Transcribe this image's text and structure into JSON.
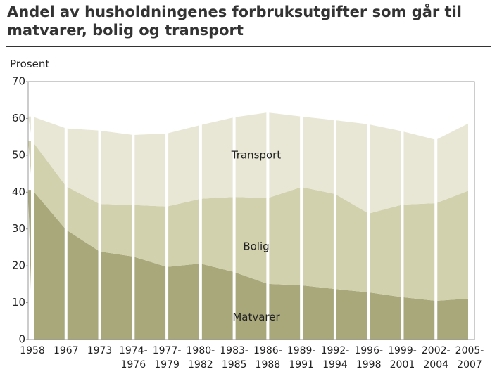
{
  "chart_data": {
    "type": "stacked-area",
    "title": "Andel av husholdningenes forbruksutgifter som går til\nmatvarer, bolig og transport",
    "y_label": "Prosent",
    "categories": [
      "1958",
      "1967",
      "1973",
      "1974-\n1976",
      "1977-\n1979",
      "1980-\n1982",
      "1983-\n1985",
      "1986-\n1988",
      "1989-\n1991",
      "1992-\n1994",
      "1996-\n1998",
      "1999-\n2001",
      "2002-\n2004",
      "2005-\n2007"
    ],
    "series": [
      {
        "name": "Matvarer",
        "color": "#a8a87b",
        "values": [
          40.6,
          29.8,
          23.9,
          22.5,
          19.7,
          20.6,
          18.3,
          15.1,
          14.7,
          13.7,
          12.8,
          11.5,
          10.5,
          11.1
        ]
      },
      {
        "name": "Bolig",
        "color": "#d2d1ae",
        "values": [
          13.2,
          11.8,
          12.9,
          14.0,
          16.4,
          17.6,
          20.4,
          23.3,
          26.7,
          25.8,
          21.4,
          25.1,
          26.5,
          29.4
        ]
      },
      {
        "name": "Transport",
        "color": "#e8e7d5",
        "values": [
          6.7,
          15.7,
          19.9,
          19.0,
          19.8,
          20.0,
          21.6,
          23.2,
          19.1,
          20.0,
          24.2,
          19.9,
          17.2,
          18.3
        ]
      }
    ],
    "ylim": [
      0,
      70
    ],
    "yticks": [
      0,
      10,
      20,
      30,
      40,
      50,
      60,
      70
    ]
  }
}
